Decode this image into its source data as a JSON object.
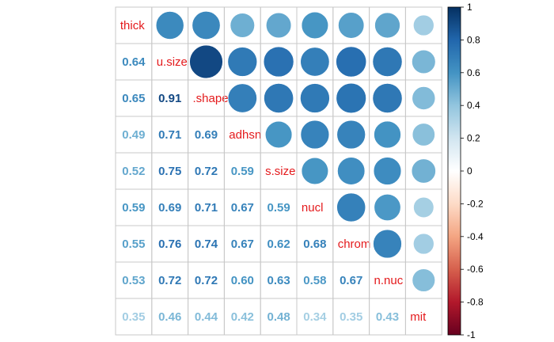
{
  "chart_data": {
    "type": "heatmap",
    "style": "mixed correlation plot: circles in upper triangle, numbers in lower triangle, variable names on diagonal",
    "variables": [
      "thick",
      "u.size",
      "u.shape",
      "adhsn",
      "s.size",
      "nucl",
      "chrom",
      "n.nuc",
      "mit"
    ],
    "diagonal_labels": [
      "thick",
      "u.size",
      ".shape",
      "adhsn",
      "s.size",
      "nucl",
      "chrom",
      "n.nuc",
      "mit"
    ],
    "matrix": [
      [
        1.0,
        0.64,
        0.65,
        0.49,
        0.52,
        0.59,
        0.55,
        0.53,
        0.35
      ],
      [
        0.64,
        1.0,
        0.91,
        0.71,
        0.75,
        0.69,
        0.76,
        0.72,
        0.46
      ],
      [
        0.65,
        0.91,
        1.0,
        0.69,
        0.72,
        0.71,
        0.74,
        0.72,
        0.44
      ],
      [
        0.49,
        0.71,
        0.69,
        1.0,
        0.59,
        0.67,
        0.67,
        0.6,
        0.42
      ],
      [
        0.52,
        0.75,
        0.72,
        0.59,
        1.0,
        0.59,
        0.62,
        0.63,
        0.48
      ],
      [
        0.59,
        0.69,
        0.71,
        0.67,
        0.59,
        1.0,
        0.68,
        0.58,
        0.34
      ],
      [
        0.55,
        0.76,
        0.74,
        0.67,
        0.62,
        0.68,
        1.0,
        0.67,
        0.35
      ],
      [
        0.53,
        0.72,
        0.72,
        0.6,
        0.63,
        0.58,
        0.67,
        1.0,
        0.43
      ],
      [
        0.35,
        0.46,
        0.44,
        0.42,
        0.48,
        0.34,
        0.35,
        0.43,
        1.0
      ]
    ],
    "number_labels": [
      [
        "",
        "",
        "",
        "",
        "",
        "",
        "",
        "",
        ""
      ],
      [
        "0.64",
        "",
        "",
        "",
        "",
        "",
        "",
        "",
        ""
      ],
      [
        "0.65",
        "0.91",
        "",
        "",
        "",
        "",
        "",
        "",
        ""
      ],
      [
        "0.49",
        "0.71",
        "0.69",
        "",
        "",
        "",
        "",
        "",
        ""
      ],
      [
        "0.52",
        "0.75",
        "0.72",
        "0.59",
        "",
        "",
        "",
        "",
        ""
      ],
      [
        "0.59",
        "0.69",
        "0.71",
        "0.67",
        "0.59",
        "",
        "",
        "",
        ""
      ],
      [
        "0.55",
        "0.76",
        "0.74",
        "0.67",
        "0.62",
        "0.68",
        "",
        "",
        ""
      ],
      [
        "0.53",
        "0.72",
        "0.72",
        "0.60",
        "0.63",
        "0.58",
        "0.67",
        "",
        ""
      ],
      [
        "0.35",
        "0.46",
        "0.44",
        "0.42",
        "0.48",
        "0.34",
        "0.35",
        "0.43",
        ""
      ]
    ],
    "colorbar": {
      "range": [
        -1,
        1
      ],
      "ticks": [
        "1",
        "0.8",
        "0.6",
        "0.4",
        "0.2",
        "0",
        "-0.2",
        "-0.4",
        "-0.6",
        "-0.8",
        "-1"
      ],
      "colors": [
        "#67001F",
        "#B2182B",
        "#D6604D",
        "#F4A582",
        "#FDDBC7",
        "#FFFFFF",
        "#D1E5F0",
        "#92C5DE",
        "#4393C3",
        "#2166AC",
        "#053061"
      ],
      "placement": "right"
    },
    "diagonal_label_color": "#e41a1c",
    "grid": true
  }
}
